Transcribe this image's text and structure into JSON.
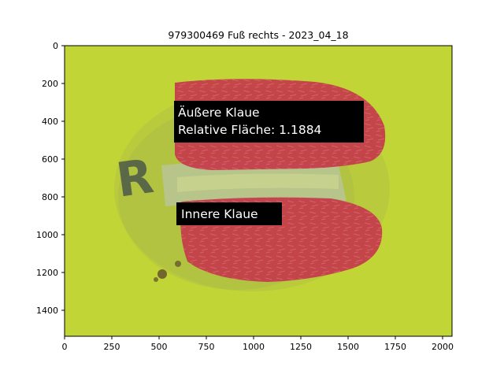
{
  "figure": {
    "title": "979300469 Fuß rechts - 2023_04_18",
    "x_ticks": [
      "0",
      "250",
      "500",
      "750",
      "1000",
      "1250",
      "1500",
      "1750",
      "2000"
    ],
    "y_ticks": [
      "0",
      "200",
      "400",
      "600",
      "800",
      "1000",
      "1200",
      "1400"
    ]
  },
  "annotations": {
    "outer": {
      "line1": "Äußere Klaue",
      "line2": "Relative Fläche: 1.1884"
    },
    "inner": {
      "line1": "Innere Klaue"
    }
  },
  "photo": {
    "mat_label": "R"
  },
  "colors": {
    "mat": "#c6d83a",
    "claw_overlay": "#c43a4a",
    "annotation_box": "#000000",
    "annotation_text": "#ffffff"
  }
}
